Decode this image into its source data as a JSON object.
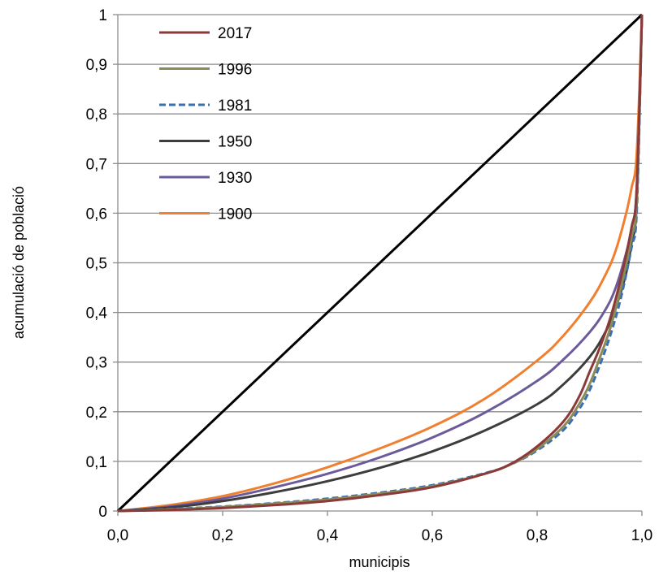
{
  "chart_data": {
    "type": "line",
    "title": "",
    "xlabel": "municipis",
    "ylabel": "acumulació de població",
    "xlim": [
      0,
      1
    ],
    "ylim": [
      0,
      1
    ],
    "x_ticks": [
      "0,0",
      "0,2",
      "0,4",
      "0,6",
      "0,8",
      "1,0"
    ],
    "x_tick_values": [
      0,
      0.2,
      0.4,
      0.6,
      0.8,
      1.0
    ],
    "y_ticks": [
      "0",
      "0,1",
      "0,2",
      "0,3",
      "0,4",
      "0,5",
      "0,6",
      "0,7",
      "0,8",
      "0,9",
      "1"
    ],
    "y_tick_values": [
      0,
      0.1,
      0.2,
      0.3,
      0.4,
      0.5,
      0.6,
      0.7,
      0.8,
      0.9,
      1.0
    ],
    "grid": "horizontal",
    "legend_position": "top-left",
    "diagonal": {
      "color": "#000000",
      "x": [
        0,
        1
      ],
      "y": [
        0,
        1
      ]
    },
    "series": [
      {
        "name": "2017",
        "color": "#8B3A3A",
        "dash": "solid",
        "x": [
          0,
          0.1,
          0.2,
          0.3,
          0.4,
          0.5,
          0.6,
          0.7,
          0.75,
          0.8,
          0.85,
          0.88,
          0.9,
          0.92,
          0.94,
          0.96,
          0.98,
          0.99,
          1.0
        ],
        "y": [
          0,
          0.002,
          0.006,
          0.012,
          0.02,
          0.032,
          0.048,
          0.075,
          0.095,
          0.13,
          0.18,
          0.23,
          0.28,
          0.33,
          0.39,
          0.47,
          0.57,
          0.65,
          1.0
        ]
      },
      {
        "name": "1996",
        "color": "#8B8B5A",
        "dash": "solid",
        "x": [
          0,
          0.1,
          0.2,
          0.3,
          0.4,
          0.5,
          0.6,
          0.7,
          0.75,
          0.8,
          0.85,
          0.88,
          0.9,
          0.92,
          0.94,
          0.96,
          0.98,
          0.99,
          1.0
        ],
        "y": [
          0,
          0.003,
          0.008,
          0.015,
          0.023,
          0.035,
          0.05,
          0.075,
          0.094,
          0.125,
          0.17,
          0.215,
          0.255,
          0.31,
          0.37,
          0.45,
          0.55,
          0.63,
          1.0
        ]
      },
      {
        "name": "1981",
        "color": "#3A6FB0",
        "dash": "dashed",
        "x": [
          0,
          0.1,
          0.2,
          0.3,
          0.4,
          0.5,
          0.6,
          0.7,
          0.75,
          0.8,
          0.85,
          0.88,
          0.9,
          0.92,
          0.94,
          0.96,
          0.98,
          0.99,
          1.0
        ],
        "y": [
          0,
          0.004,
          0.009,
          0.016,
          0.025,
          0.037,
          0.052,
          0.076,
          0.094,
          0.122,
          0.163,
          0.205,
          0.243,
          0.295,
          0.355,
          0.43,
          0.53,
          0.6,
          1.0
        ]
      },
      {
        "name": "1950",
        "color": "#3D3D3D",
        "dash": "solid",
        "x": [
          0,
          0.1,
          0.2,
          0.3,
          0.4,
          0.5,
          0.6,
          0.7,
          0.8,
          0.85,
          0.9,
          0.93,
          0.95,
          0.97,
          0.98,
          0.99,
          1.0
        ],
        "y": [
          0,
          0.007,
          0.02,
          0.038,
          0.06,
          0.087,
          0.12,
          0.162,
          0.215,
          0.255,
          0.31,
          0.36,
          0.41,
          0.48,
          0.54,
          0.62,
          1.0
        ]
      },
      {
        "name": "1930",
        "color": "#6B5B9A",
        "dash": "solid",
        "x": [
          0,
          0.1,
          0.2,
          0.3,
          0.4,
          0.5,
          0.6,
          0.7,
          0.8,
          0.85,
          0.9,
          0.93,
          0.95,
          0.97,
          0.98,
          0.99,
          1.0
        ],
        "y": [
          0,
          0.009,
          0.025,
          0.048,
          0.075,
          0.108,
          0.148,
          0.198,
          0.262,
          0.305,
          0.36,
          0.405,
          0.45,
          0.52,
          0.57,
          0.65,
          1.0
        ]
      },
      {
        "name": "1900",
        "color": "#F08030",
        "dash": "solid",
        "x": [
          0,
          0.1,
          0.2,
          0.3,
          0.4,
          0.5,
          0.6,
          0.7,
          0.8,
          0.85,
          0.9,
          0.93,
          0.95,
          0.97,
          0.98,
          0.99,
          1.0
        ],
        "y": [
          0,
          0.012,
          0.03,
          0.056,
          0.088,
          0.126,
          0.17,
          0.226,
          0.303,
          0.353,
          0.42,
          0.475,
          0.525,
          0.6,
          0.65,
          0.72,
          1.0
        ]
      }
    ]
  }
}
